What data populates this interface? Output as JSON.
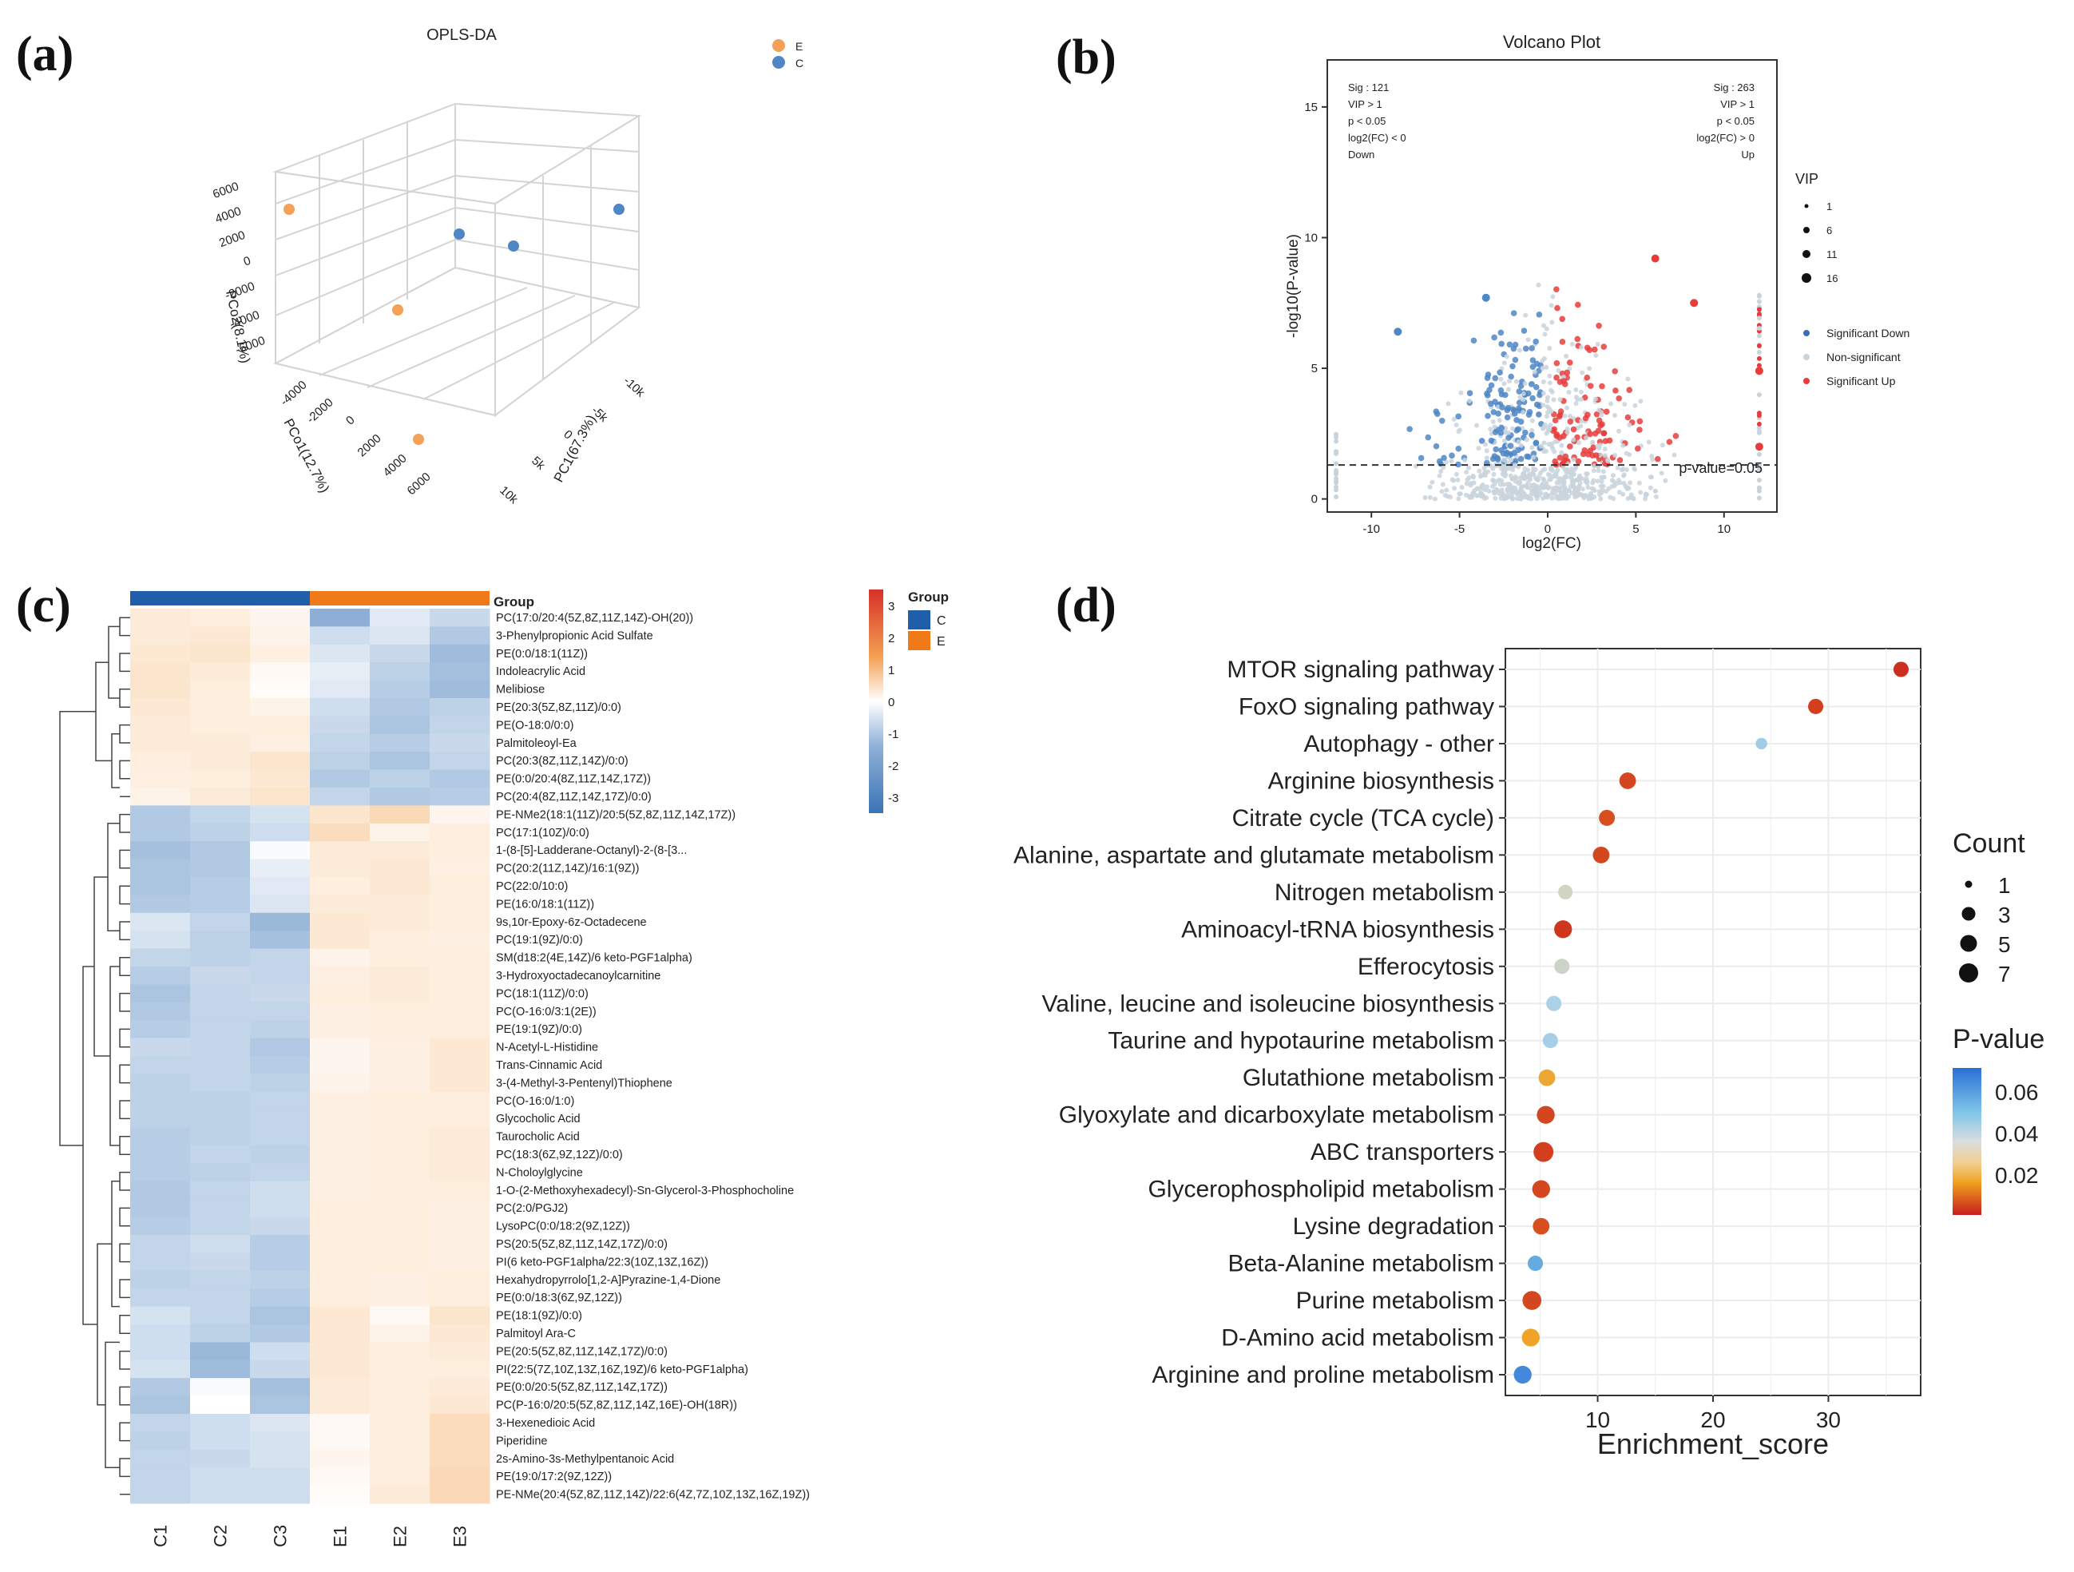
{
  "panel_labels": {
    "a": "(a)",
    "b": "(b)",
    "c": "(c)",
    "d": "(d)"
  },
  "colors": {
    "orange": "#f4a057",
    "blue": "#4f86c6",
    "red": "#e83c3c",
    "lightgray": "#c9d3dc",
    "dark_blue": "#1f5ea8",
    "dark_orange": "#f07a1a"
  },
  "chart_data": [
    {
      "panel": "a",
      "type": "scatter",
      "title": "OPLS-DA",
      "legend": [
        {
          "name": "E"
        },
        {
          "name": "C"
        }
      ],
      "axes": {
        "z_label": "PCo2(8.1%)",
        "z_ticks": [
          "6000",
          "4000",
          "2000",
          "0",
          "-2000",
          "-4000",
          "-6000"
        ],
        "y_label": "PCo1(12.7%)",
        "y_ticks": [
          "-4000",
          "-2000",
          "0",
          "2000",
          "4000",
          "6000"
        ],
        "x_label": "PC1(67.3%)",
        "x_ticks": [
          "-10k",
          "-5k",
          "0",
          "5k",
          "10k"
        ]
      },
      "points": [
        {
          "group": "E",
          "pos": "upper-left"
        },
        {
          "group": "E",
          "pos": "center-left"
        },
        {
          "group": "E",
          "pos": "bottom"
        },
        {
          "group": "C",
          "pos": "center"
        },
        {
          "group": "C",
          "pos": "center-right"
        },
        {
          "group": "C",
          "pos": "upper-right"
        }
      ]
    },
    {
      "panel": "b",
      "type": "scatter",
      "title": "Volcano Plot",
      "xlabel": "log2(FC)",
      "ylabel": "-log10(P-value)",
      "xlim": [
        -12.5,
        13
      ],
      "ylim": [
        -0.5,
        16.8
      ],
      "x_ticks": [
        -10,
        -5,
        0,
        5,
        10
      ],
      "y_ticks": [
        0,
        5,
        10,
        15
      ],
      "threshold": {
        "value": 1.3,
        "label": "p-value=0.05"
      },
      "annotation_left": [
        "Sig : 121",
        "VIP > 1",
        "p < 0.05",
        "log2(FC) < 0",
        "Down"
      ],
      "annotation_right": [
        "Sig : 263",
        "VIP > 1",
        "p < 0.05",
        "log2(FC) > 0",
        "Up"
      ],
      "vip_legend": {
        "title": "VIP",
        "values": [
          "1",
          "6",
          "11",
          "16"
        ]
      },
      "category_legend": [
        "Significant Down",
        "Non-significant",
        "Significant Up"
      ],
      "highlight_points": [
        {
          "x": -3.5,
          "y": 7.7,
          "cls": "down"
        },
        {
          "x": -8.5,
          "y": 6.4,
          "cls": "down"
        },
        {
          "x": 6.1,
          "y": 9.2,
          "cls": "up"
        },
        {
          "x": 8.3,
          "y": 7.5,
          "cls": "up"
        },
        {
          "x": 12,
          "y": 4.9,
          "cls": "up"
        },
        {
          "x": 12,
          "y": 2.0,
          "cls": "up"
        }
      ]
    },
    {
      "panel": "c",
      "type": "heatmap",
      "columns": [
        "C1",
        "C2",
        "C3",
        "E1",
        "E2",
        "E3"
      ],
      "groups": [
        "C",
        "C",
        "C",
        "E",
        "E",
        "E"
      ],
      "group_title": "Group",
      "group_legend": [
        {
          "name": "C"
        },
        {
          "name": "E"
        }
      ],
      "color_scale": {
        "min": -3.5,
        "max": 3.5,
        "ticks": [
          "3",
          "2",
          "1",
          "0",
          "-1",
          "-2",
          "-3"
        ]
      },
      "rows": [
        {
          "name": "PC(17:0/20:4(5Z,8Z,11Z,14Z)-OH(20))",
          "values": [
            0.7,
            0.6,
            0.3,
            -1.9,
            -0.5,
            -0.9
          ]
        },
        {
          "name": "3-Phenylpropionic Acid Sulfate",
          "values": [
            0.7,
            0.8,
            0.4,
            -0.8,
            -0.6,
            -1.3
          ]
        },
        {
          "name": "PE(0:0/18:1(11Z))",
          "values": [
            0.8,
            0.9,
            0.5,
            -0.6,
            -0.9,
            -1.6
          ]
        },
        {
          "name": "Indoleacrylic Acid",
          "values": [
            0.9,
            0.7,
            0.2,
            -0.4,
            -1.1,
            -1.5
          ]
        },
        {
          "name": "Melibiose",
          "values": [
            0.9,
            0.6,
            0.1,
            -0.5,
            -1.2,
            -1.6
          ]
        },
        {
          "name": "PE(20:3(5Z,8Z,11Z)/0:0)",
          "values": [
            0.8,
            0.6,
            0.4,
            -0.8,
            -1.3,
            -1.1
          ]
        },
        {
          "name": "PE(O-18:0/0:0)",
          "values": [
            0.7,
            0.6,
            0.6,
            -0.9,
            -1.4,
            -1.0
          ]
        },
        {
          "name": "Palmitoleoyl-Ea",
          "values": [
            0.7,
            0.7,
            0.5,
            -1.0,
            -1.2,
            -0.9
          ]
        },
        {
          "name": "PC(20:3(8Z,11Z,14Z)/0:0)",
          "values": [
            0.6,
            0.7,
            0.9,
            -1.1,
            -1.4,
            -1.0
          ]
        },
        {
          "name": "PE(0:0/20:4(8Z,11Z,14Z,17Z))",
          "values": [
            0.5,
            0.6,
            0.8,
            -1.3,
            -1.1,
            -1.3
          ]
        },
        {
          "name": "PC(20:4(8Z,11Z,14Z,17Z)/0:0)",
          "values": [
            0.4,
            0.7,
            0.9,
            -1.0,
            -1.3,
            -1.2
          ]
        },
        {
          "name": "PE-NMe2(18:1(11Z)/20:5(5Z,8Z,11Z,14Z,17Z))",
          "values": [
            -1.3,
            -1.0,
            -0.7,
            0.9,
            1.3,
            0.3
          ]
        },
        {
          "name": "PC(17:1(10Z)/0:0)",
          "values": [
            -1.3,
            -1.1,
            -0.8,
            1.2,
            0.4,
            0.6
          ]
        },
        {
          "name": "1-(8-[5]-Ladderane-Octanyl)-2-(8-[3...",
          "values": [
            -1.5,
            -1.3,
            -0.1,
            0.7,
            0.7,
            0.6
          ]
        },
        {
          "name": "PC(20:2(11Z,14Z)/16:1(9Z))",
          "values": [
            -1.4,
            -1.3,
            -0.4,
            0.7,
            0.8,
            0.5
          ]
        },
        {
          "name": "PC(22:0/10:0)",
          "values": [
            -1.4,
            -1.2,
            -0.5,
            0.6,
            0.8,
            0.6
          ]
        },
        {
          "name": "PE(16:0/18:1(11Z))",
          "values": [
            -1.3,
            -1.2,
            -0.6,
            0.7,
            0.7,
            0.6
          ]
        },
        {
          "name": "9s,10r-Epoxy-6z-Octadecene",
          "values": [
            -0.6,
            -1.0,
            -1.7,
            0.8,
            0.7,
            0.6
          ]
        },
        {
          "name": "PC(19:1(9Z)/0:0)",
          "values": [
            -0.7,
            -1.1,
            -1.5,
            0.8,
            0.6,
            0.5
          ]
        },
        {
          "name": "SM(d18:2(4E,14Z)/6 keto-PGF1alpha)",
          "values": [
            -1.0,
            -1.1,
            -1.0,
            0.4,
            0.6,
            0.6
          ]
        },
        {
          "name": "3-Hydroxyoctadecanoylcarnitine",
          "values": [
            -1.2,
            -0.9,
            -1.0,
            0.5,
            0.7,
            0.6
          ]
        },
        {
          "name": "PC(18:1(11Z)/0:0)",
          "values": [
            -1.4,
            -1.0,
            -0.9,
            0.6,
            0.7,
            0.6
          ]
        },
        {
          "name": "PC(O-16:0/3:1(2E))",
          "values": [
            -1.3,
            -1.0,
            -1.0,
            0.5,
            0.6,
            0.6
          ]
        },
        {
          "name": "PE(19:1(9Z)/0:0)",
          "values": [
            -1.2,
            -1.0,
            -1.1,
            0.5,
            0.6,
            0.6
          ]
        },
        {
          "name": "N-Acetyl-L-Histidine",
          "values": [
            -0.9,
            -1.0,
            -1.3,
            0.3,
            0.5,
            0.8
          ]
        },
        {
          "name": "Trans-Cinnamic Acid",
          "values": [
            -1.0,
            -1.0,
            -1.2,
            0.3,
            0.5,
            0.8
          ]
        },
        {
          "name": "3-(4-Methyl-3-Pentenyl)Thiophene",
          "values": [
            -1.1,
            -1.0,
            -1.1,
            0.4,
            0.5,
            0.8
          ]
        },
        {
          "name": "PC(O-16:0/1:0)",
          "values": [
            -1.1,
            -1.1,
            -1.0,
            0.5,
            0.6,
            0.6
          ]
        },
        {
          "name": "Glycocholic Acid",
          "values": [
            -1.1,
            -1.1,
            -1.0,
            0.5,
            0.6,
            0.6
          ]
        },
        {
          "name": "Taurocholic Acid",
          "values": [
            -1.2,
            -1.1,
            -1.0,
            0.5,
            0.6,
            0.7
          ]
        },
        {
          "name": "PC(18:3(6Z,9Z,12Z)/0:0)",
          "values": [
            -1.2,
            -1.0,
            -1.1,
            0.5,
            0.6,
            0.7
          ]
        },
        {
          "name": "N-Choloylglycine",
          "values": [
            -1.2,
            -1.1,
            -1.0,
            0.5,
            0.6,
            0.7
          ]
        },
        {
          "name": "1-O-(2-Methoxyhexadecyl)-Sn-Glycerol-3-Phosphocholine",
          "values": [
            -1.3,
            -1.0,
            -0.8,
            0.5,
            0.6,
            0.6
          ]
        },
        {
          "name": "PC(2:0/PGJ2)",
          "values": [
            -1.3,
            -1.0,
            -0.8,
            0.6,
            0.6,
            0.5
          ]
        },
        {
          "name": "LysoPC(0:0/18:2(9Z,12Z))",
          "values": [
            -1.2,
            -1.0,
            -0.9,
            0.6,
            0.6,
            0.5
          ]
        },
        {
          "name": "PS(20:5(5Z,8Z,11Z,14Z,17Z)/0:0)",
          "values": [
            -1.0,
            -0.8,
            -1.2,
            0.6,
            0.6,
            0.5
          ]
        },
        {
          "name": "PI(6 keto-PGF1alpha/22:3(10Z,13Z,16Z))",
          "values": [
            -1.0,
            -0.9,
            -1.2,
            0.6,
            0.6,
            0.5
          ]
        },
        {
          "name": "Hexahydropyrrolo[1,2-A]Pyrazine-1,4-Dione",
          "values": [
            -1.1,
            -1.0,
            -1.1,
            0.6,
            0.5,
            0.6
          ]
        },
        {
          "name": "PE(0:0/18:3(6Z,9Z,12Z))",
          "values": [
            -1.0,
            -1.0,
            -1.2,
            0.6,
            0.5,
            0.6
          ]
        },
        {
          "name": "PE(18:1(9Z)/0:0)",
          "values": [
            -0.7,
            -1.0,
            -1.4,
            0.8,
            0.2,
            0.9
          ]
        },
        {
          "name": "Palmitoyl Ara-C",
          "values": [
            -0.8,
            -1.1,
            -1.3,
            0.8,
            0.4,
            0.8
          ]
        },
        {
          "name": "PE(20:5(5Z,8Z,11Z,14Z,17Z)/0:0)",
          "values": [
            -0.8,
            -1.7,
            -0.8,
            0.8,
            0.6,
            0.7
          ]
        },
        {
          "name": "PI(22:5(7Z,10Z,13Z,16Z,19Z)/6 keto-PGF1alpha)",
          "values": [
            -0.7,
            -1.6,
            -0.9,
            0.8,
            0.6,
            0.6
          ]
        },
        {
          "name": "PE(0:0/20:5(5Z,8Z,11Z,14Z,17Z))",
          "values": [
            -1.3,
            -0.1,
            -1.5,
            0.7,
            0.6,
            0.7
          ]
        },
        {
          "name": "PC(P-16:0/20:5(5Z,8Z,11Z,14Z,16E)-OH(18R))",
          "values": [
            -1.4,
            0.0,
            -1.4,
            0.7,
            0.6,
            0.8
          ]
        },
        {
          "name": "3-Hexenedioic Acid",
          "values": [
            -1.0,
            -0.8,
            -0.6,
            0.2,
            0.6,
            1.2
          ]
        },
        {
          "name": "Piperidine",
          "values": [
            -1.1,
            -0.8,
            -0.7,
            0.2,
            0.6,
            1.2
          ]
        },
        {
          "name": "2s-Amino-3s-Methylpentanoic Acid",
          "values": [
            -1.0,
            -0.9,
            -0.7,
            0.3,
            0.6,
            1.2
          ]
        },
        {
          "name": "PE(19:0/17:2(9Z,12Z))",
          "values": [
            -1.0,
            -0.8,
            -0.8,
            0.2,
            0.6,
            1.3
          ]
        },
        {
          "name": "PE-NMe(20:4(5Z,8Z,11Z,14Z)/22:6(4Z,7Z,10Z,13Z,16Z,19Z))",
          "values": [
            -1.0,
            -0.8,
            -0.8,
            0.1,
            0.7,
            1.3
          ]
        }
      ]
    },
    {
      "panel": "d",
      "type": "scatter",
      "xlabel": "Enrichment_score",
      "x_ticks": [
        10,
        20,
        30
      ],
      "xlim": [
        2,
        38
      ],
      "size_legend": {
        "title": "Count",
        "values": [
          1,
          3,
          5,
          7
        ]
      },
      "color_legend": {
        "title": "P-value",
        "ticks": [
          "0.06",
          "0.04",
          "0.02"
        ],
        "min": 0.005,
        "max": 0.07
      },
      "pathways": [
        {
          "name": "MTOR signaling pathway",
          "score": 36.3,
          "count": 3,
          "p": 0.007
        },
        {
          "name": "FoxO signaling pathway",
          "score": 28.9,
          "count": 3,
          "p": 0.009
        },
        {
          "name": "Autophagy - other",
          "score": 24.2,
          "count": 1,
          "p": 0.048
        },
        {
          "name": "Arginine biosynthesis",
          "score": 12.6,
          "count": 4,
          "p": 0.01
        },
        {
          "name": "Citrate cycle (TCA cycle)",
          "score": 10.8,
          "count": 3.5,
          "p": 0.011
        },
        {
          "name": "Alanine, aspartate and glutamate metabolism",
          "score": 10.3,
          "count": 4,
          "p": 0.01
        },
        {
          "name": "Nitrogen metabolism",
          "score": 7.2,
          "count": 2.5,
          "p": 0.036
        },
        {
          "name": "Aminoacyl-tRNA biosynthesis",
          "score": 7.0,
          "count": 5,
          "p": 0.008
        },
        {
          "name": "Efferocytosis",
          "score": 6.9,
          "count": 3,
          "p": 0.038
        },
        {
          "name": "Valine, leucine and isoleucine biosynthesis",
          "score": 6.2,
          "count": 3,
          "p": 0.046
        },
        {
          "name": "Taurine and hypotaurine metabolism",
          "score": 5.9,
          "count": 3,
          "p": 0.047
        },
        {
          "name": "Glutathione metabolism",
          "score": 5.6,
          "count": 4,
          "p": 0.023
        },
        {
          "name": "Glyoxylate and dicarboxylate metabolism",
          "score": 5.5,
          "count": 5,
          "p": 0.01
        },
        {
          "name": "ABC transporters",
          "score": 5.3,
          "count": 7,
          "p": 0.009
        },
        {
          "name": "Glycerophospholipid metabolism",
          "score": 5.1,
          "count": 5,
          "p": 0.01
        },
        {
          "name": "Lysine degradation",
          "score": 5.1,
          "count": 4,
          "p": 0.011
        },
        {
          "name": "Beta-Alanine metabolism",
          "score": 4.6,
          "count": 3,
          "p": 0.058
        },
        {
          "name": "Purine metabolism",
          "score": 4.3,
          "count": 6,
          "p": 0.01
        },
        {
          "name": "D-Amino acid metabolism",
          "score": 4.2,
          "count": 5,
          "p": 0.022
        },
        {
          "name": "Arginine and proline metabolism",
          "score": 3.5,
          "count": 5,
          "p": 0.065
        }
      ]
    }
  ]
}
